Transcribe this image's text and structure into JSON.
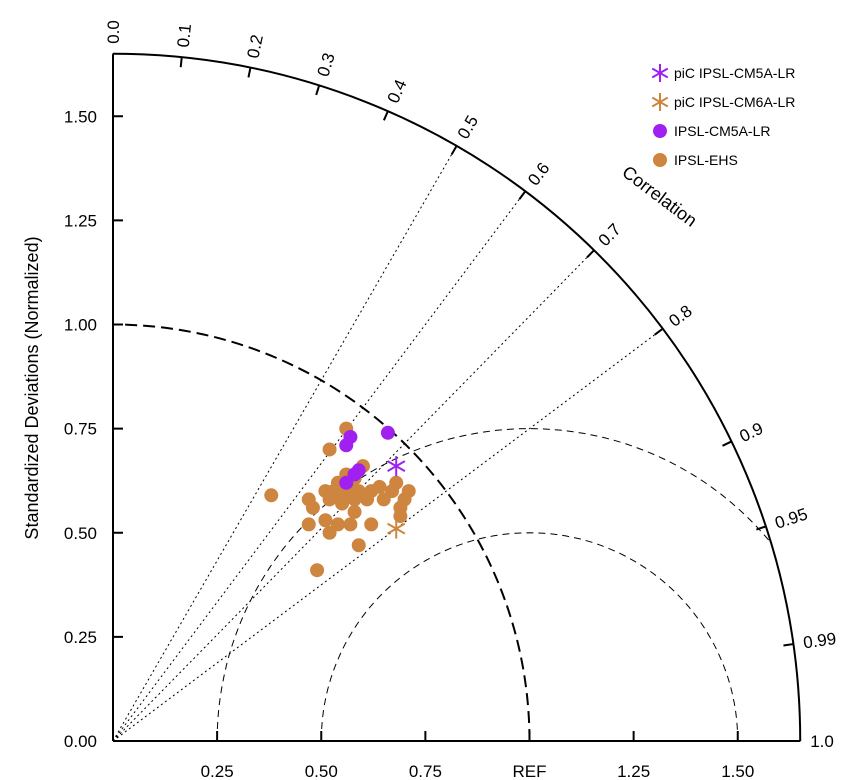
{
  "chart_data": {
    "type": "scatter",
    "title": "",
    "ylabel": "Standardized Deviations (Normalized)",
    "angular_label": "Correlation",
    "std_max": 1.65,
    "ref_std": 1.0,
    "ref_label": "REF",
    "std_ticks": [
      "0.00",
      "0.25",
      "0.50",
      "0.75",
      "1.00",
      "1.25",
      "1.50"
    ],
    "x_ticks": [
      {
        "value": 0.25,
        "label": "0.25"
      },
      {
        "value": 0.5,
        "label": "0.50"
      },
      {
        "value": 0.75,
        "label": "0.75"
      },
      {
        "value": 1.0,
        "label": "REF"
      },
      {
        "value": 1.25,
        "label": "1.25"
      },
      {
        "value": 1.5,
        "label": "1.50"
      }
    ],
    "corr_ticks": [
      {
        "value": 0.0,
        "label": "0.0"
      },
      {
        "value": 0.1,
        "label": "0.1"
      },
      {
        "value": 0.2,
        "label": "0.2"
      },
      {
        "value": 0.3,
        "label": "0.3"
      },
      {
        "value": 0.4,
        "label": "0.4"
      },
      {
        "value": 0.5,
        "label": "0.5"
      },
      {
        "value": 0.6,
        "label": "0.6"
      },
      {
        "value": 0.7,
        "label": "0.7"
      },
      {
        "value": 0.8,
        "label": "0.8"
      },
      {
        "value": 0.9,
        "label": "0.9"
      },
      {
        "value": 0.95,
        "label": "0.95"
      },
      {
        "value": 0.99,
        "label": "0.99"
      },
      {
        "value": 1.0,
        "label": "1.0"
      }
    ],
    "corr_radials": [
      0.5,
      0.6,
      0.7,
      0.8
    ],
    "rms_arcs": [
      0.5,
      0.75
    ],
    "legend_position": "top-right",
    "series": [
      {
        "name": "piC IPSL-CM5A-LR",
        "marker": "asterisk",
        "color": "#a020f0",
        "points": [
          [
            0.68,
            0.66
          ]
        ]
      },
      {
        "name": "piC IPSL-CM6A-LR",
        "marker": "asterisk",
        "color": "#cd853f",
        "points": [
          [
            0.68,
            0.51
          ]
        ]
      },
      {
        "name": "IPSL-CM5A-LR",
        "marker": "circle",
        "color": "#a020f0",
        "points": [
          [
            0.66,
            0.74
          ],
          [
            0.57,
            0.73
          ],
          [
            0.56,
            0.71
          ],
          [
            0.59,
            0.65
          ],
          [
            0.58,
            0.64
          ],
          [
            0.56,
            0.62
          ]
        ]
      },
      {
        "name": "IPSL-EHS",
        "marker": "circle",
        "color": "#cd853f",
        "points": [
          [
            0.56,
            0.75
          ],
          [
            0.52,
            0.7
          ],
          [
            0.6,
            0.66
          ],
          [
            0.56,
            0.64
          ],
          [
            0.58,
            0.63
          ],
          [
            0.54,
            0.62
          ],
          [
            0.68,
            0.62
          ],
          [
            0.51,
            0.6
          ],
          [
            0.53,
            0.6
          ],
          [
            0.55,
            0.59
          ],
          [
            0.57,
            0.6
          ],
          [
            0.59,
            0.6
          ],
          [
            0.62,
            0.6
          ],
          [
            0.64,
            0.61
          ],
          [
            0.67,
            0.6
          ],
          [
            0.71,
            0.6
          ],
          [
            0.38,
            0.59
          ],
          [
            0.47,
            0.58
          ],
          [
            0.52,
            0.58
          ],
          [
            0.58,
            0.58
          ],
          [
            0.61,
            0.58
          ],
          [
            0.65,
            0.58
          ],
          [
            0.7,
            0.58
          ],
          [
            0.69,
            0.56
          ],
          [
            0.48,
            0.56
          ],
          [
            0.55,
            0.57
          ],
          [
            0.58,
            0.55
          ],
          [
            0.69,
            0.54
          ],
          [
            0.51,
            0.53
          ],
          [
            0.47,
            0.52
          ],
          [
            0.54,
            0.52
          ],
          [
            0.57,
            0.52
          ],
          [
            0.62,
            0.52
          ],
          [
            0.52,
            0.5
          ],
          [
            0.59,
            0.47
          ],
          [
            0.49,
            0.41
          ]
        ]
      }
    ]
  }
}
